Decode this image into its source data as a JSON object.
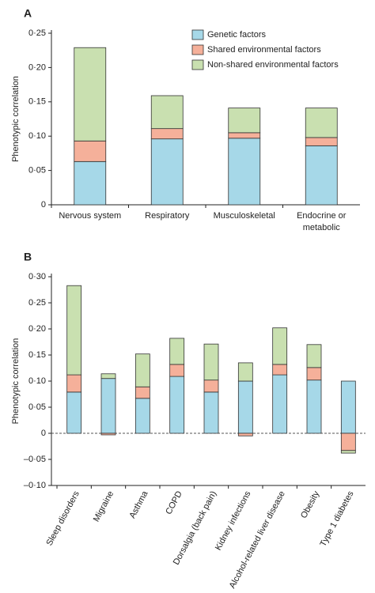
{
  "chart_data": [
    {
      "type": "bar",
      "stacked": true,
      "panel": "A",
      "y_label": "Phenotypic correlation",
      "categories": [
        "Nervous system",
        "Respiratory",
        "Musculoskeletal",
        "Endocrine or metabolic"
      ],
      "series": [
        {
          "name": "Genetic factors",
          "color": "#a6d8e8",
          "values": [
            0.063,
            0.096,
            0.097,
            0.086
          ]
        },
        {
          "name": "Shared environmental factors",
          "color": "#f5b09a",
          "values": [
            0.03,
            0.015,
            0.008,
            0.012
          ]
        },
        {
          "name": "Non-shared environmental factors",
          "color": "#c9e0b0",
          "values": [
            0.136,
            0.048,
            0.036,
            0.043
          ]
        }
      ],
      "ylim": [
        0,
        0.25
      ],
      "yticks": [
        0,
        {
          "value": 0.05,
          "label": "0·05"
        },
        {
          "value": 0.1,
          "label": "0·10"
        },
        {
          "value": 0.15,
          "label": "0·15"
        },
        {
          "value": 0.2,
          "label": "0·20"
        },
        {
          "value": 0.25,
          "label": "0·25"
        }
      ],
      "legend": "top-right"
    },
    {
      "type": "bar",
      "stacked": true,
      "panel": "B",
      "y_label": "Phenotypic correlation",
      "categories": [
        "Sleep disorders",
        "Migraine",
        "Asthma",
        "COPD",
        "Dorsalgia (back pain)",
        "Kidney infections",
        "Alcohol-related liver disease",
        "Obesity",
        "Type 1 diabetes"
      ],
      "series": [
        {
          "name": "Genetic factors",
          "color": "#a6d8e8",
          "values": [
            0.079,
            0.105,
            0.067,
            0.109,
            0.079,
            0.1,
            0.112,
            0.102,
            0.1
          ]
        },
        {
          "name": "Shared environmental factors",
          "color": "#f5b09a",
          "values": [
            0.033,
            -0.003,
            0.022,
            0.023,
            0.023,
            -0.005,
            0.02,
            0.024,
            -0.033
          ]
        },
        {
          "name": "Non-shared environmental factors",
          "color": "#c9e0b0",
          "values": [
            0.171,
            0.009,
            0.063,
            0.05,
            0.069,
            0.035,
            0.07,
            0.044,
            -0.005
          ]
        }
      ],
      "ylim": [
        -0.1,
        0.3
      ],
      "yticks": [
        {
          "value": -0.1,
          "label": "–0·10"
        },
        {
          "value": -0.05,
          "label": "–0·05"
        },
        0,
        {
          "value": 0.05,
          "label": "0·05"
        },
        {
          "value": 0.1,
          "label": "0·10"
        },
        {
          "value": 0.15,
          "label": "0·15"
        },
        {
          "value": 0.2,
          "label": "0·20"
        },
        {
          "value": 0.25,
          "label": "0·25"
        },
        {
          "value": 0.3,
          "label": "0·30"
        }
      ],
      "zero_line": "dashed"
    }
  ]
}
